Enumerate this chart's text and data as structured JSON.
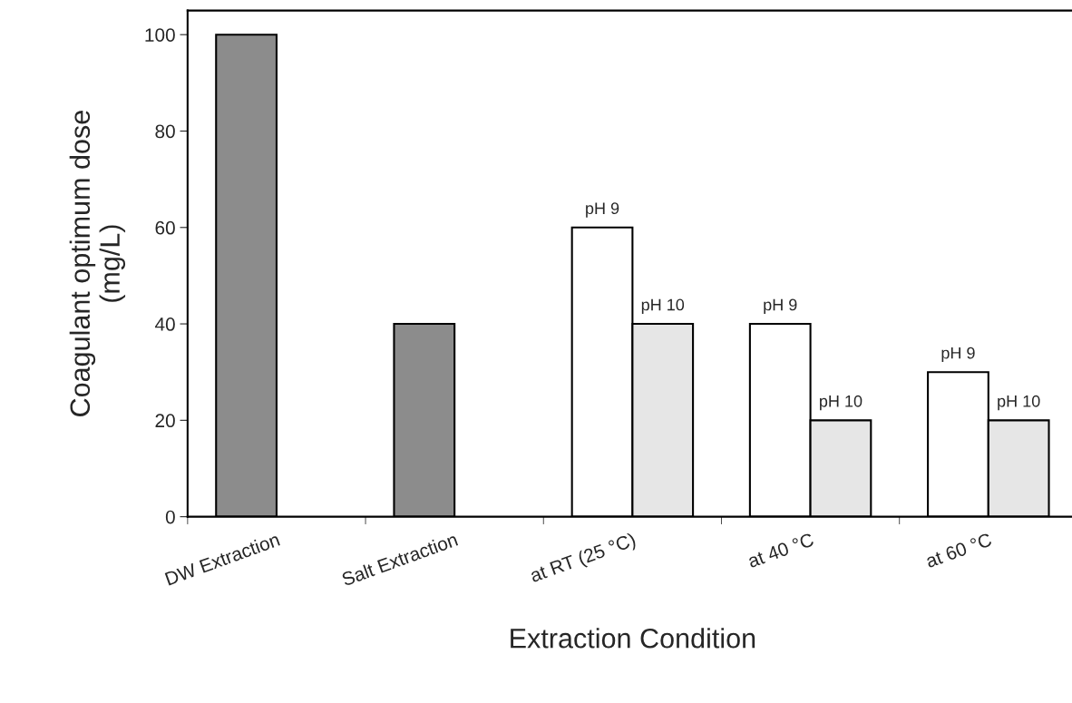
{
  "chart_data": {
    "type": "bar",
    "xlabel": "Extraction Condition",
    "ylabel": "Coagulant optimum dose\n(mg/L)",
    "categories": [
      "DW Extraction",
      "Salt Extraction",
      "at RT (25 °C)",
      "at 40 °C",
      "at 60 °C"
    ],
    "series": [
      {
        "colors": [
          "#8c8c8c",
          "#8c8c8c",
          "#ffffff",
          "#ffffff",
          "#ffffff"
        ],
        "values": [
          100,
          40,
          60,
          40,
          30
        ],
        "value_labels": [
          null,
          null,
          "pH 9",
          "pH 9",
          "pH 9"
        ]
      },
      {
        "colors": [
          "#e6e6e6",
          "#e6e6e6",
          "#e6e6e6",
          "#e6e6e6",
          "#e6e6e6"
        ],
        "values": [
          null,
          null,
          40,
          20,
          20
        ],
        "value_labels": [
          null,
          null,
          "pH 10",
          "pH 10",
          "pH 10"
        ]
      }
    ],
    "ylim": [
      0,
      105
    ],
    "yticks": [
      0,
      20,
      40,
      60,
      80,
      100
    ],
    "grid": false,
    "legend": false
  }
}
